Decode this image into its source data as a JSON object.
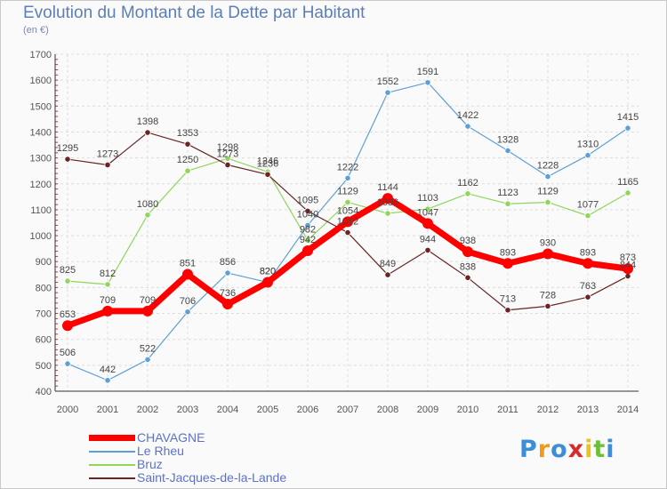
{
  "title": "Evolution du Montant de la Dette par Habitant",
  "subtitle": "(en €)",
  "chart_data": {
    "type": "line",
    "title": "Evolution du Montant de la Dette par Habitant",
    "ylabel": "(en €)",
    "x": [
      "2000",
      "2001",
      "2002",
      "2003",
      "2004",
      "2005",
      "2006",
      "2007",
      "2008",
      "2009",
      "2010",
      "2011",
      "2012",
      "2013",
      "2014"
    ],
    "ylim": [
      400,
      1700
    ],
    "yticks": [
      400,
      500,
      600,
      700,
      800,
      900,
      1000,
      1100,
      1200,
      1300,
      1400,
      1500,
      1600,
      1700
    ],
    "grid": true,
    "legend_position": "bottom",
    "series": [
      {
        "name": "CHAVAGNE",
        "color": "#ff0000",
        "values": [
          653,
          709,
          709,
          851,
          736,
          820,
          942,
          1054,
          1144,
          1047,
          938,
          893,
          930,
          893,
          873
        ]
      },
      {
        "name": "Le Rheu",
        "color": "#5e9fd6",
        "values": [
          506,
          442,
          522,
          706,
          856,
          820,
          1040,
          1222,
          1552,
          1591,
          1422,
          1328,
          1228,
          1310,
          1415
        ]
      },
      {
        "name": "Bruz",
        "color": "#8fd65a",
        "values": [
          825,
          812,
          1080,
          1250,
          1298,
          1246,
          982,
          1129,
          1086,
          1103,
          1162,
          1123,
          1129,
          1077,
          1165
        ]
      },
      {
        "name": "Saint-Jacques-de-la-Lande",
        "color": "#6b2323",
        "values": [
          1295,
          1273,
          1398,
          1353,
          1273,
          1236,
          1095,
          1012,
          849,
          944,
          838,
          713,
          728,
          763,
          844
        ]
      }
    ]
  },
  "logo": {
    "text": "Proxiti",
    "letters": [
      "P",
      "r",
      "o",
      "x",
      "i",
      "t",
      "i"
    ],
    "colors": [
      "#3a8fd8",
      "#f29a1a",
      "#3a8fd8",
      "#d82a2a",
      "#e8c51a",
      "#6cbf3a",
      "#3a8fd8"
    ]
  }
}
